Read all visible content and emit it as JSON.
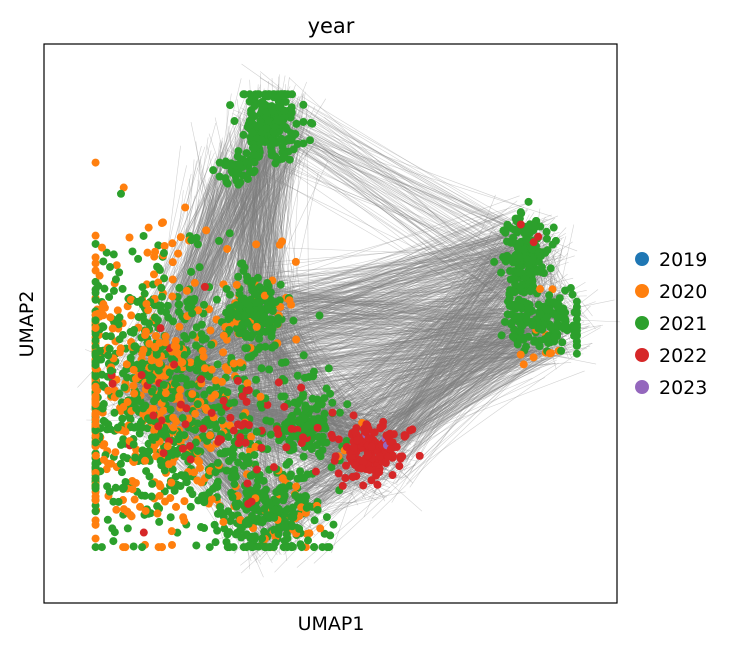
{
  "chart_data": {
    "type": "scatter",
    "title": "year",
    "xlabel": "UMAP1",
    "ylabel": "UMAP2",
    "xticks": [],
    "yticks": [],
    "grid": false,
    "legend": {
      "placement": "right",
      "entries": [
        "2019",
        "2020",
        "2021",
        "2022",
        "2023"
      ]
    },
    "series": [
      {
        "name": "2019",
        "color": "#1f77b4",
        "clusters": []
      },
      {
        "name": "2020",
        "color": "#ff7f0e",
        "clusters": [
          {
            "center": [
              0.19,
              0.38
            ],
            "spread": [
              0.09,
              0.13
            ],
            "count": 420
          },
          {
            "center": [
              0.4,
              0.52
            ],
            "spread": [
              0.04,
              0.05
            ],
            "count": 25
          },
          {
            "center": [
              0.43,
              0.17
            ],
            "spread": [
              0.04,
              0.04
            ],
            "count": 30
          },
          {
            "center": [
              0.55,
              0.27
            ],
            "spread": [
              0.02,
              0.02
            ],
            "count": 6
          },
          {
            "center": [
              0.87,
              0.49
            ],
            "spread": [
              0.02,
              0.03
            ],
            "count": 15
          }
        ]
      },
      {
        "name": "2021",
        "color": "#2ca02c",
        "clusters": [
          {
            "center": [
              0.4,
              0.86
            ],
            "spread": [
              0.025,
              0.035
            ],
            "count": 200
          },
          {
            "center": [
              0.335,
              0.78
            ],
            "spread": [
              0.015,
              0.015
            ],
            "count": 40
          },
          {
            "center": [
              0.365,
              0.8
            ],
            "spread": [
              0.01,
              0.012
            ],
            "count": 15
          },
          {
            "center": [
              0.365,
              0.52
            ],
            "spread": [
              0.025,
              0.035
            ],
            "count": 180
          },
          {
            "center": [
              0.2,
              0.37
            ],
            "spread": [
              0.085,
              0.12
            ],
            "count": 620
          },
          {
            "center": [
              0.46,
              0.32
            ],
            "spread": [
              0.025,
              0.04
            ],
            "count": 120
          },
          {
            "center": [
              0.39,
              0.15
            ],
            "spread": [
              0.045,
              0.04
            ],
            "count": 210
          },
          {
            "center": [
              0.36,
              0.26
            ],
            "spread": [
              0.045,
              0.05
            ],
            "count": 90
          },
          {
            "center": [
              0.84,
              0.63
            ],
            "spread": [
              0.02,
              0.03
            ],
            "count": 130
          },
          {
            "center": [
              0.88,
              0.5
            ],
            "spread": [
              0.035,
              0.025
            ],
            "count": 150
          },
          {
            "center": [
              0.83,
              0.55
            ],
            "spread": [
              0.01,
              0.03
            ],
            "count": 50
          }
        ]
      },
      {
        "name": "2022",
        "color": "#d62728",
        "clusters": [
          {
            "center": [
              0.57,
              0.27
            ],
            "spread": [
              0.03,
              0.025
            ],
            "count": 160
          },
          {
            "center": [
              0.38,
              0.31
            ],
            "spread": [
              0.07,
              0.04
            ],
            "count": 45
          },
          {
            "center": [
              0.21,
              0.34
            ],
            "spread": [
              0.07,
              0.09
            ],
            "count": 25
          },
          {
            "center": [
              0.87,
              0.66
            ],
            "spread": [
              0.02,
              0.02
            ],
            "count": 4
          }
        ]
      },
      {
        "name": "2023",
        "color": "#9467bd",
        "clusters": [
          {
            "center": [
              0.6,
              0.29
            ],
            "spread": [
              0.01,
              0.01
            ],
            "count": 2
          },
          {
            "center": [
              0.57,
              0.3
            ],
            "spread": [
              0.005,
              0.005
            ],
            "count": 1
          }
        ]
      }
    ],
    "edges": {
      "color": "#7f7f7f",
      "anchors": [
        [
          0.4,
          0.86
        ],
        [
          0.33,
          0.78
        ],
        [
          0.365,
          0.52
        ],
        [
          0.19,
          0.38
        ],
        [
          0.46,
          0.32
        ],
        [
          0.39,
          0.15
        ],
        [
          0.57,
          0.27
        ],
        [
          0.84,
          0.63
        ],
        [
          0.88,
          0.5
        ]
      ],
      "pairs": [
        [
          [
            0,
            2
          ],
          260
        ],
        [
          [
            1,
            3
          ],
          160
        ],
        [
          [
            0,
            3
          ],
          120
        ],
        [
          [
            2,
            3
          ],
          260
        ],
        [
          [
            3,
            4
          ],
          220
        ],
        [
          [
            3,
            5
          ],
          260
        ],
        [
          [
            2,
            4
          ],
          110
        ],
        [
          [
            5,
            6
          ],
          140
        ],
        [
          [
            4,
            6
          ],
          140
        ],
        [
          [
            3,
            6
          ],
          200
        ],
        [
          [
            2,
            6
          ],
          90
        ],
        [
          [
            7,
            8
          ],
          90
        ],
        [
          [
            6,
            7
          ],
          130
        ],
        [
          [
            6,
            8
          ],
          140
        ],
        [
          [
            2,
            7
          ],
          110
        ],
        [
          [
            2,
            8
          ],
          110
        ],
        [
          [
            3,
            7
          ],
          90
        ],
        [
          [
            3,
            8
          ],
          120
        ],
        [
          [
            0,
            7
          ],
          50
        ],
        [
          [
            0,
            8
          ],
          30
        ],
        [
          [
            4,
            8
          ],
          80
        ],
        [
          [
            4,
            7
          ],
          60
        ],
        [
          [
            5,
            8
          ],
          60
        ],
        [
          [
            1,
            2
          ],
          60
        ],
        [
          [
            2,
            5
          ],
          110
        ]
      ]
    }
  }
}
